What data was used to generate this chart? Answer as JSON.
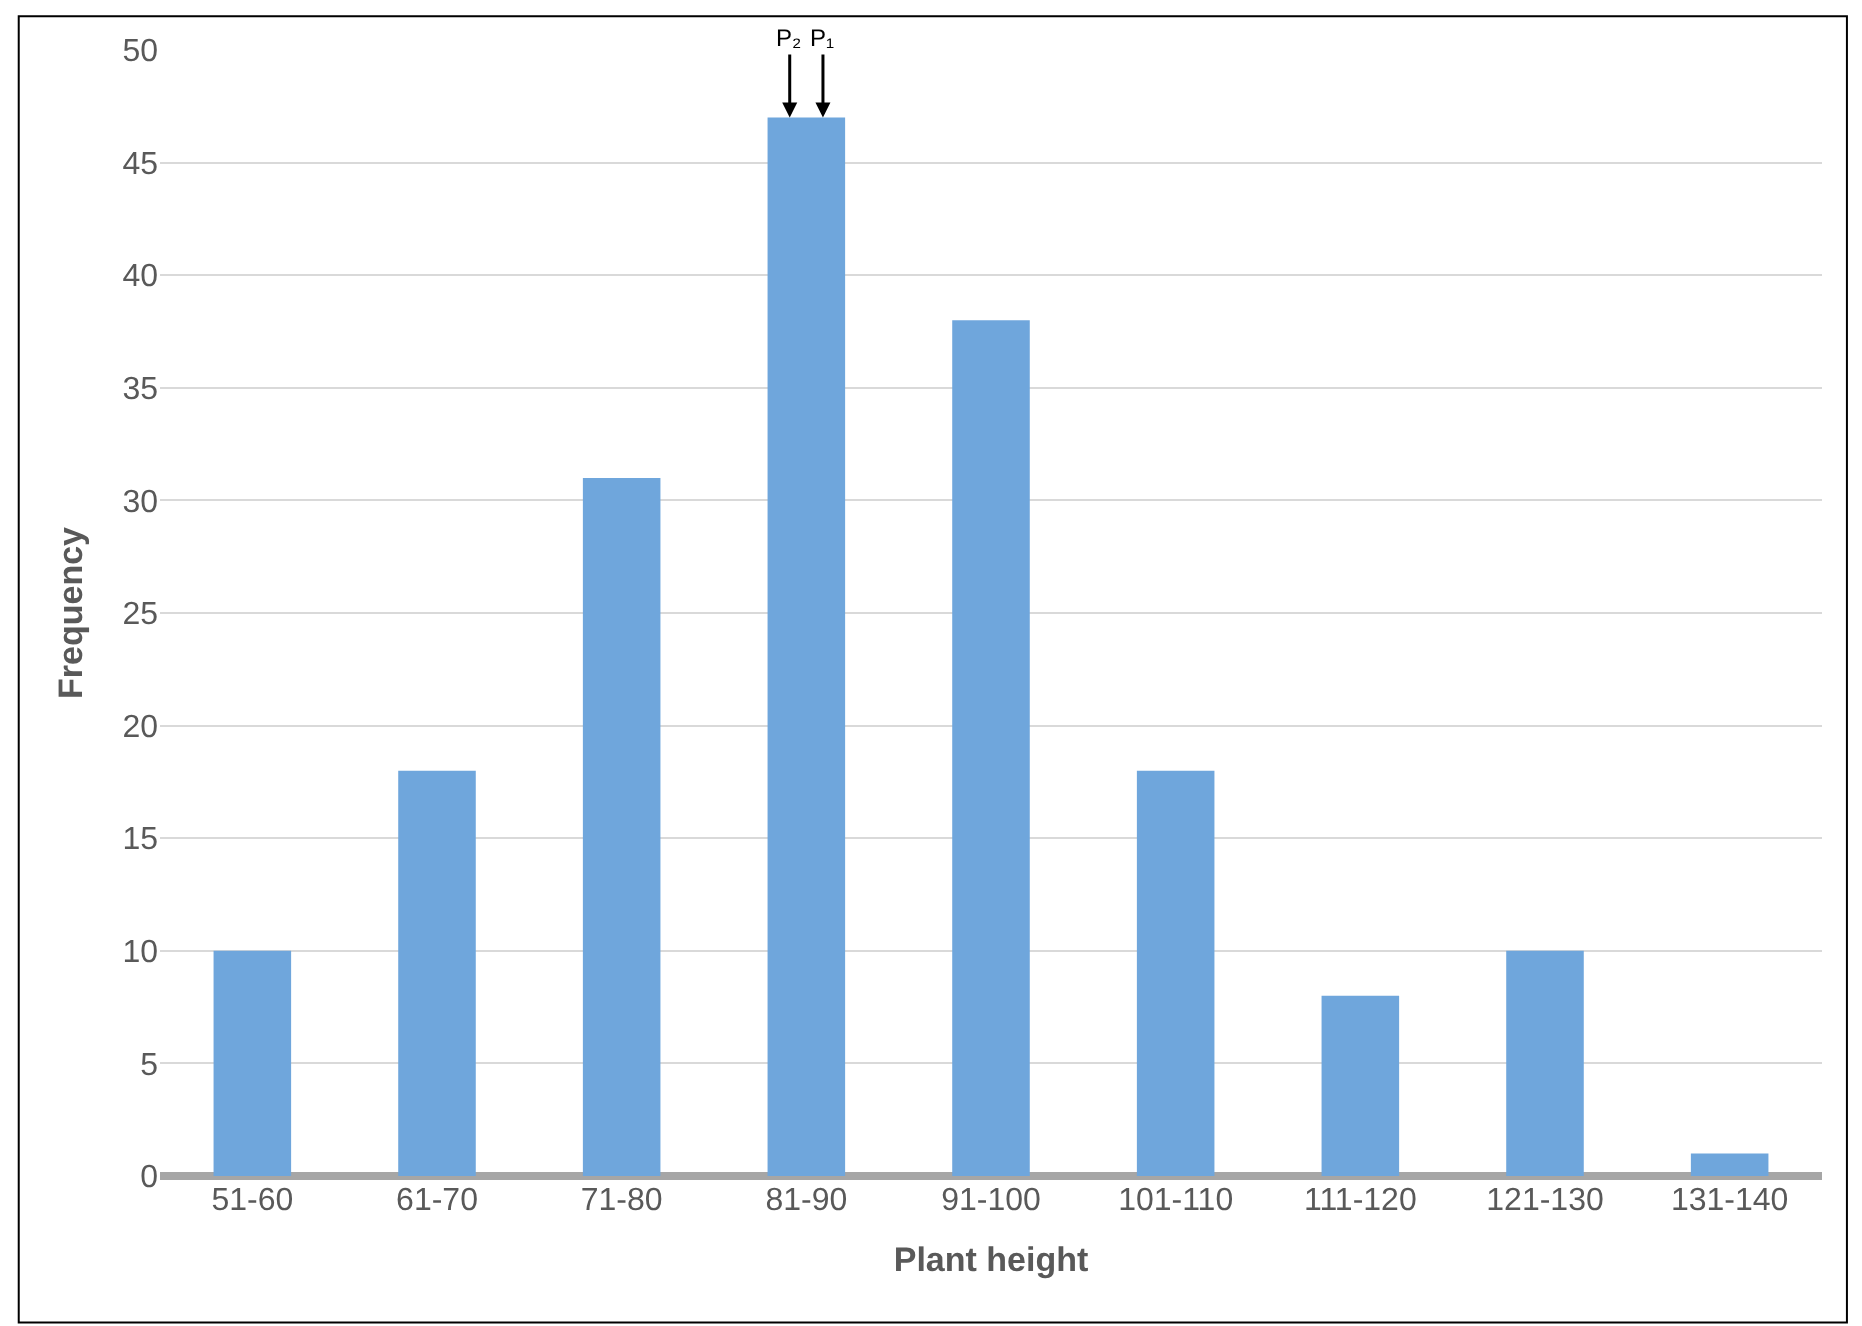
{
  "chart_data": {
    "type": "bar",
    "xlabel": "Plant height",
    "ylabel": "Frequency",
    "categories": [
      "51-60",
      "61-70",
      "71-80",
      "81-90",
      "91-100",
      "101-110",
      "111-120",
      "121-130",
      "131-140"
    ],
    "values": [
      10,
      18,
      31,
      47,
      38,
      18,
      8,
      10,
      1
    ],
    "color": "#6fa6dc",
    "ylim": [
      0,
      50
    ],
    "yticks": [
      0,
      5,
      10,
      15,
      20,
      25,
      30,
      35,
      40,
      45,
      50
    ],
    "grid": "y",
    "legend": false,
    "annotations": [
      {
        "text": "P₂",
        "x": "81-90",
        "y": 47
      },
      {
        "text": "P₁",
        "x": "81-90",
        "y": 47
      }
    ]
  }
}
